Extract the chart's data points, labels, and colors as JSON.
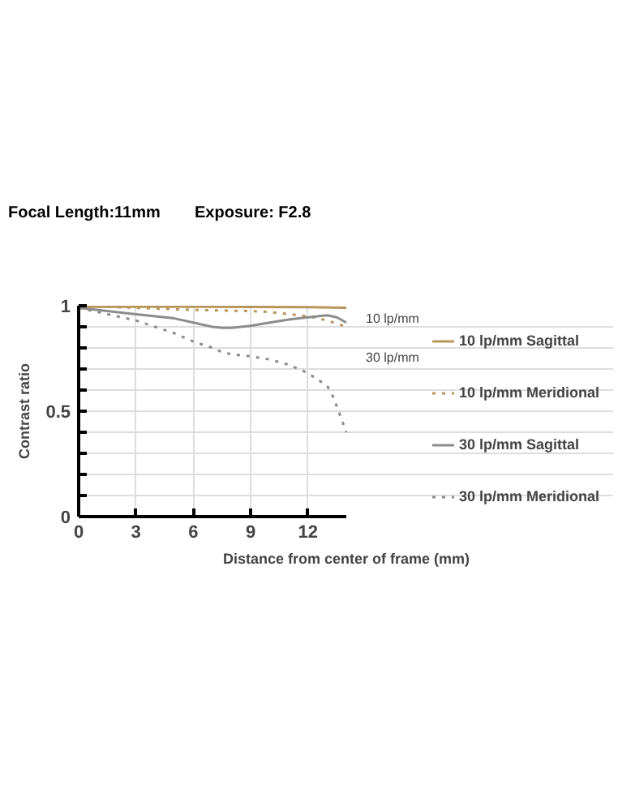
{
  "chart_data": {
    "type": "line",
    "title": "Focal Length:11mm",
    "subtitle": "Exposure: F2.8",
    "xlabel": "Distance from center of frame (mm)",
    "ylabel": "Contrast ratio",
    "annotations": [
      "10 lp/mm",
      "30 lp/mm"
    ],
    "xlim": [
      0,
      14
    ],
    "ylim": [
      0,
      1
    ],
    "xticks": [
      0,
      3,
      6,
      9,
      12
    ],
    "yticks": [
      0,
      {
        "value": 0.1,
        "label": null
      },
      {
        "value": 0.2,
        "label": null
      },
      {
        "value": 0.3,
        "label": null
      },
      {
        "value": 0.4,
        "label": null
      },
      0.5,
      {
        "value": 0.6,
        "label": null
      },
      {
        "value": 0.7,
        "label": null
      },
      {
        "value": 0.8,
        "label": null
      },
      {
        "value": 0.9,
        "label": null
      },
      1
    ],
    "grid": true,
    "legend": "right",
    "marker": "none",
    "series": [
      {
        "name": "10 lp/mm Sagittal",
        "color": "#b8965a",
        "line_style": "solid",
        "x": [
          0,
          3,
          6,
          9,
          12,
          14
        ],
        "values": [
          0.995,
          0.995,
          0.995,
          0.994,
          0.993,
          0.99
        ]
      },
      {
        "name": "10 lp/mm Meridional",
        "color": "#b8965a",
        "line_style": "dotted",
        "x": [
          0,
          3,
          6,
          9,
          10,
          12,
          13,
          14
        ],
        "values": [
          1,
          0.99,
          0.98,
          0.975,
          0.97,
          0.95,
          0.93,
          0.9
        ]
      },
      {
        "name": "30 lp/mm Sagittal",
        "color": "#8c8c8c",
        "line_style": "solid",
        "x": [
          0,
          1,
          3,
          5,
          6,
          7,
          7.5,
          8,
          9,
          10,
          11,
          12,
          13,
          13.5,
          14
        ],
        "values": [
          0.99,
          0.98,
          0.96,
          0.94,
          0.92,
          0.9,
          0.895,
          0.895,
          0.905,
          0.92,
          0.935,
          0.945,
          0.955,
          0.945,
          0.92
        ]
      },
      {
        "name": "30 lp/mm Meridional",
        "color": "#8c8c8c",
        "line_style": "dotted",
        "x": [
          0,
          1,
          2,
          3,
          4,
          5,
          6,
          7,
          7.5,
          8,
          9,
          10,
          11,
          12,
          12.5,
          13,
          13.3,
          13.6,
          14
        ],
        "values": [
          0.99,
          0.97,
          0.95,
          0.93,
          0.9,
          0.87,
          0.83,
          0.8,
          0.78,
          0.77,
          0.76,
          0.745,
          0.72,
          0.68,
          0.65,
          0.62,
          0.57,
          0.5,
          0.4
        ]
      }
    ]
  }
}
